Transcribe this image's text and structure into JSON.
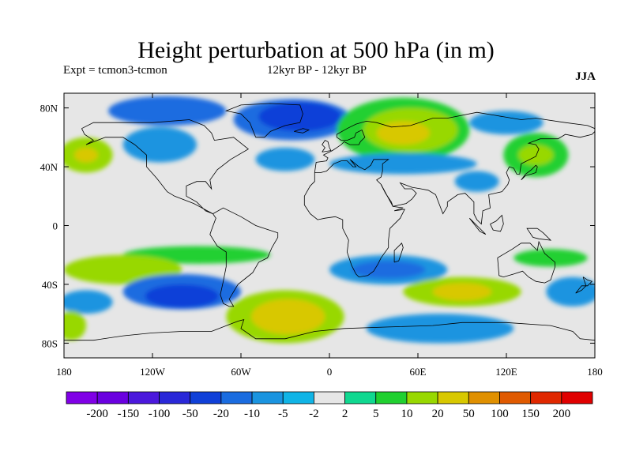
{
  "chart_data": {
    "type": "heatmap",
    "title": "Height perturbation at 500 hPa (in m)",
    "subtitle_left": "Expt = tcmon3-tcmon",
    "subtitle_center": "12kyr BP - 12kyr BP",
    "subtitle_right": "JJA",
    "projection": "cylindrical equidistant world map with coastlines",
    "x": {
      "range": [
        -180,
        180
      ],
      "ticks": [
        -180,
        -120,
        -60,
        0,
        60,
        120,
        180
      ],
      "tick_labels": [
        "180",
        "120W",
        "60W",
        "0",
        "60E",
        "120E",
        "180"
      ]
    },
    "y": {
      "range": [
        -90,
        90
      ],
      "ticks": [
        80,
        40,
        0,
        -40,
        -80
      ],
      "tick_labels": [
        "80N",
        "40N",
        "0",
        "40S",
        "80S"
      ]
    },
    "colorbar": {
      "levels": [
        "-200",
        "-150",
        "-100",
        "-50",
        "-20",
        "-10",
        "-5",
        "-2",
        "2",
        "5",
        "10",
        "20",
        "50",
        "100",
        "150",
        "200"
      ],
      "colors": [
        "#8000e6",
        "#6a00e0",
        "#4b18dc",
        "#2a28d8",
        "#1040d8",
        "#1a6ce0",
        "#1a94e0",
        "#10b4e6",
        "#e6e6e6",
        "#10d890",
        "#20d030",
        "#98d800",
        "#d8c800",
        "#e09000",
        "#e05a00",
        "#e02800",
        "#e00000"
      ]
    },
    "fields": [
      {
        "lon": -110,
        "lat": 78,
        "rx": 40,
        "ry": 10,
        "level": "-10"
      },
      {
        "lon": -165,
        "lat": 48,
        "rx": 18,
        "ry": 12,
        "level": "10"
      },
      {
        "lon": -165,
        "lat": 48,
        "rx": 8,
        "ry": 5,
        "level": "20"
      },
      {
        "lon": -115,
        "lat": 55,
        "rx": 25,
        "ry": 12,
        "level": "-5"
      },
      {
        "lon": -30,
        "lat": 45,
        "rx": 20,
        "ry": 8,
        "level": "-5"
      },
      {
        "lon": -25,
        "lat": 72,
        "rx": 40,
        "ry": 14,
        "level": "-10"
      },
      {
        "lon": -20,
        "lat": 74,
        "rx": 28,
        "ry": 10,
        "level": "-20"
      },
      {
        "lon": 50,
        "lat": 65,
        "rx": 45,
        "ry": 22,
        "level": "5"
      },
      {
        "lon": 55,
        "lat": 65,
        "rx": 32,
        "ry": 15,
        "level": "10"
      },
      {
        "lon": 50,
        "lat": 63,
        "rx": 18,
        "ry": 8,
        "level": "20"
      },
      {
        "lon": 50,
        "lat": 42,
        "rx": 50,
        "ry": 7,
        "level": "-5"
      },
      {
        "lon": 120,
        "lat": 70,
        "rx": 25,
        "ry": 8,
        "level": "-5"
      },
      {
        "lon": 140,
        "lat": 48,
        "rx": 22,
        "ry": 15,
        "level": "5"
      },
      {
        "lon": 140,
        "lat": 48,
        "rx": 12,
        "ry": 7,
        "level": "10"
      },
      {
        "lon": 100,
        "lat": 30,
        "rx": 15,
        "ry": 7,
        "level": "-5"
      },
      {
        "lon": -90,
        "lat": -20,
        "rx": 50,
        "ry": 6,
        "level": "5"
      },
      {
        "lon": -140,
        "lat": -30,
        "rx": 40,
        "ry": 10,
        "level": "10"
      },
      {
        "lon": -100,
        "lat": -45,
        "rx": 40,
        "ry": 12,
        "level": "-10"
      },
      {
        "lon": -100,
        "lat": -48,
        "rx": 25,
        "ry": 8,
        "level": "-20"
      },
      {
        "lon": -165,
        "lat": -52,
        "rx": 18,
        "ry": 8,
        "level": "-5"
      },
      {
        "lon": -175,
        "lat": -68,
        "rx": 10,
        "ry": 10,
        "level": "10"
      },
      {
        "lon": -30,
        "lat": -62,
        "rx": 40,
        "ry": 18,
        "level": "10"
      },
      {
        "lon": -28,
        "lat": -62,
        "rx": 25,
        "ry": 12,
        "level": "20"
      },
      {
        "lon": 40,
        "lat": -30,
        "rx": 40,
        "ry": 10,
        "level": "-5"
      },
      {
        "lon": 40,
        "lat": -30,
        "rx": 25,
        "ry": 6,
        "level": "-10"
      },
      {
        "lon": 90,
        "lat": -45,
        "rx": 40,
        "ry": 10,
        "level": "10"
      },
      {
        "lon": 90,
        "lat": -45,
        "rx": 20,
        "ry": 6,
        "level": "20"
      },
      {
        "lon": 75,
        "lat": -70,
        "rx": 50,
        "ry": 10,
        "level": "-5"
      },
      {
        "lon": 150,
        "lat": -22,
        "rx": 25,
        "ry": 6,
        "level": "5"
      },
      {
        "lon": 165,
        "lat": -45,
        "rx": 18,
        "ry": 10,
        "level": "-5"
      }
    ]
  }
}
